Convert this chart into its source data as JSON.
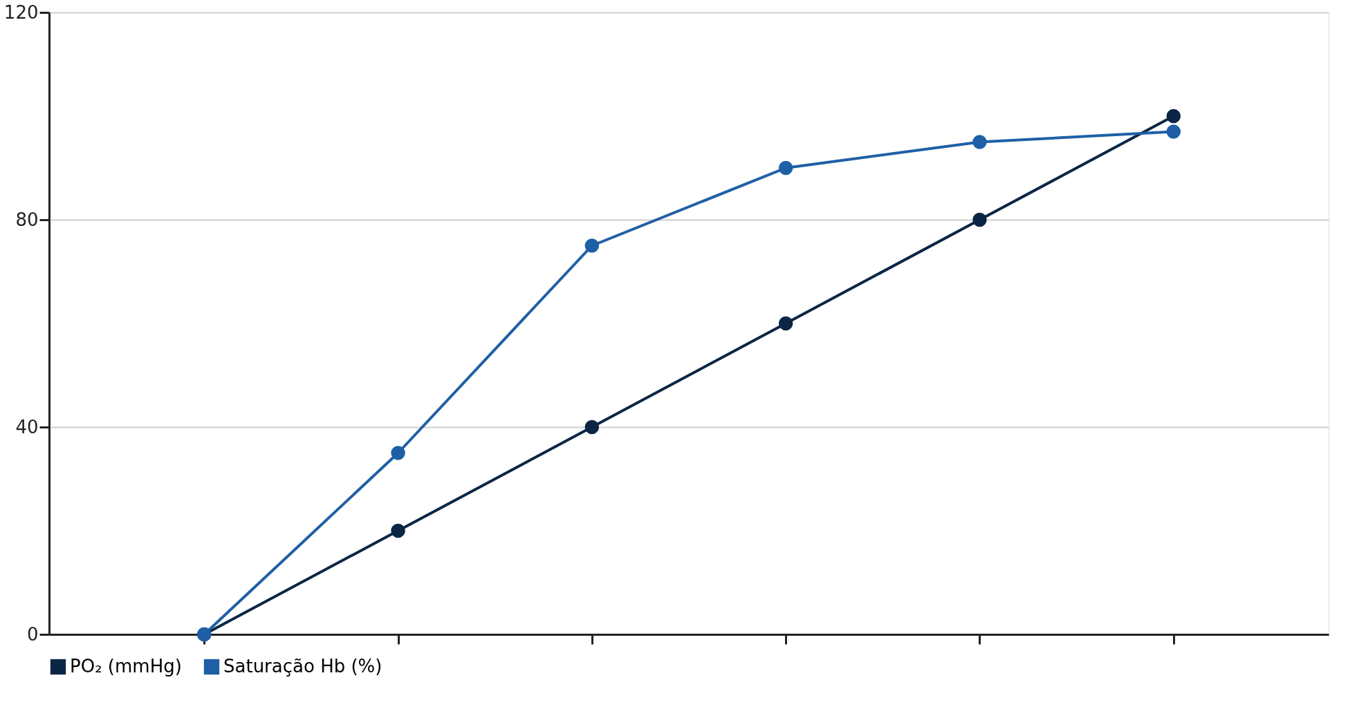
{
  "chart_data": {
    "type": "line",
    "categories": [
      null,
      null,
      null,
      null,
      null,
      null
    ],
    "series": [
      {
        "name": "PO₂ (mmHg)",
        "color": "#0b2545",
        "values": [
          0,
          20,
          40,
          60,
          80,
          100
        ]
      },
      {
        "name": "Saturação Hb (%)",
        "color": "#1f5fa6",
        "values": [
          0,
          35,
          75,
          90,
          95,
          97
        ]
      }
    ],
    "ylim": [
      0,
      120
    ],
    "yticks": [
      0,
      40,
      80,
      120
    ],
    "grid": "y",
    "legend": "bottom",
    "tick_labels": "y",
    "marker": "circle",
    "line_style": "solid"
  }
}
